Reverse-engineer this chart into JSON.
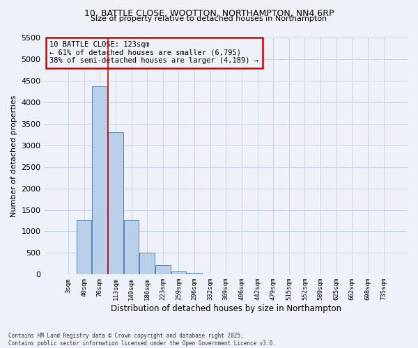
{
  "title_line1": "10, BATTLE CLOSE, WOOTTON, NORTHAMPTON, NN4 6RP",
  "title_line2": "Size of property relative to detached houses in Northampton",
  "xlabel": "Distribution of detached houses by size in Northampton",
  "ylabel": "Number of detached properties",
  "categories": [
    "3sqm",
    "40sqm",
    "76sqm",
    "113sqm",
    "149sqm",
    "186sqm",
    "223sqm",
    "259sqm",
    "296sqm",
    "332sqm",
    "369sqm",
    "406sqm",
    "442sqm",
    "479sqm",
    "515sqm",
    "552sqm",
    "589sqm",
    "625sqm",
    "662sqm",
    "698sqm",
    "735sqm"
  ],
  "values": [
    0,
    1260,
    4370,
    3300,
    1270,
    500,
    220,
    75,
    30,
    0,
    0,
    0,
    0,
    0,
    0,
    0,
    0,
    0,
    0,
    0,
    0
  ],
  "bar_color": "#b8d0ea",
  "bar_edge_color": "#5585b5",
  "grid_color": "#c8d4e4",
  "background_color": "#eef2f8",
  "annotation_text": "10 BATTLE CLOSE: 123sqm\n← 61% of detached houses are smaller (6,795)\n38% of semi-detached houses are larger (4,189) →",
  "annotation_box_color": "#cc0000",
  "vline_x": 2.5,
  "vline_color": "#cc0000",
  "ylim": [
    0,
    5500
  ],
  "yticks": [
    0,
    500,
    1000,
    1500,
    2000,
    2500,
    3000,
    3500,
    4000,
    4500,
    5000,
    5500
  ],
  "footer_line1": "Contains HM Land Registry data © Crown copyright and database right 2025.",
  "footer_line2": "Contains public sector information licensed under the Open Government Licence v3.0."
}
